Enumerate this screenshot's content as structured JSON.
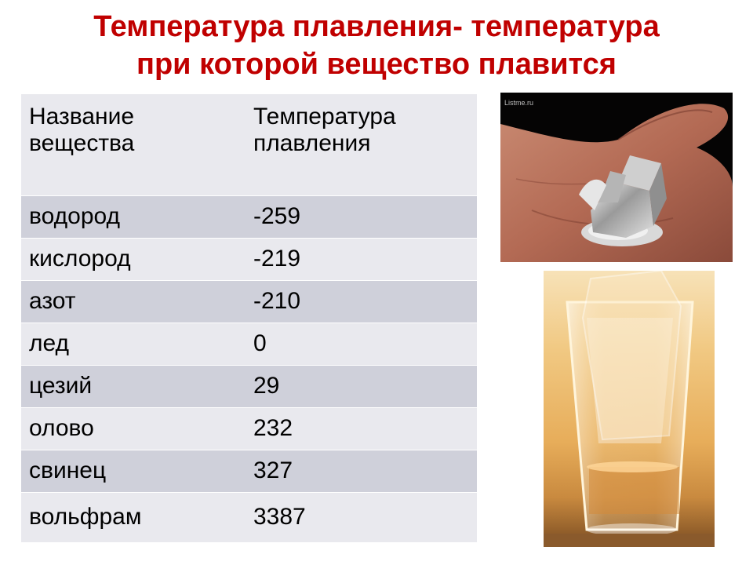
{
  "title": {
    "line1": "Температура плавления- температура",
    "line2": "при которой вещество плавится"
  },
  "table": {
    "headers": [
      "Название вещества",
      "Температура плавления"
    ],
    "rows": [
      {
        "name": "водород",
        "temp": "-259"
      },
      {
        "name": "кислород",
        "temp": "-219"
      },
      {
        "name": "азот",
        "temp": "-210"
      },
      {
        "name": "лед",
        "temp": "0"
      },
      {
        "name": "цезий",
        "temp": "29"
      },
      {
        "name": "олово",
        "temp": "232"
      },
      {
        "name": "свинец",
        "temp": "327"
      },
      {
        "name": "вольфрам",
        "temp": "3387"
      }
    ]
  },
  "images": {
    "hand_watermark": "Listme.ru"
  },
  "colors": {
    "title": "#c00000",
    "header_bg": "#e9e9ee",
    "row_dark": "#cfd0da",
    "row_light": "#e9e9ee"
  }
}
